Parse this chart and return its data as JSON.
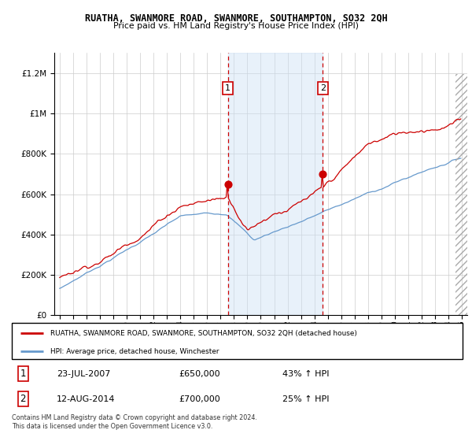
{
  "title": "RUATHA, SWANMORE ROAD, SWANMORE, SOUTHAMPTON, SO32 2QH",
  "subtitle": "Price paid vs. HM Land Registry's House Price Index (HPI)",
  "red_label": "RUATHA, SWANMORE ROAD, SWANMORE, SOUTHAMPTON, SO32 2QH (detached house)",
  "blue_label": "HPI: Average price, detached house, Winchester",
  "sale1_date": "23-JUL-2007",
  "sale1_price": 650000,
  "sale1_pct": "43% ↑ HPI",
  "sale2_date": "12-AUG-2014",
  "sale2_price": 700000,
  "sale2_pct": "25% ↑ HPI",
  "footer": "Contains HM Land Registry data © Crown copyright and database right 2024.\nThis data is licensed under the Open Government Licence v3.0.",
  "ylim": [
    0,
    1300000
  ],
  "start_year": 1995,
  "end_year": 2025,
  "sale1_year": 2007.55,
  "sale2_year": 2014.62,
  "red_color": "#cc0000",
  "blue_color": "#6699cc",
  "shade_color": "#cce0f5",
  "grid_color": "#cccccc",
  "bg_color": "#ffffff"
}
